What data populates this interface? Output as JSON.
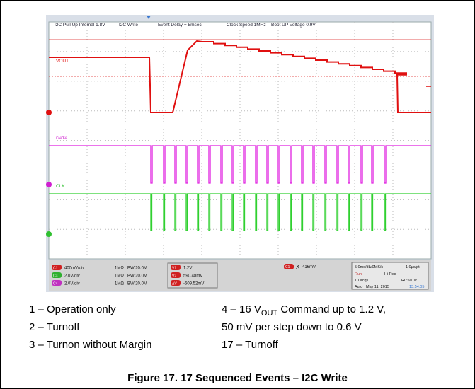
{
  "scope": {
    "top_labels": [
      "I2C Pull Up Internal 1.8V",
      "I2C Write",
      "Event Delay = 5msec",
      "Clock Speed 1MHz",
      "Boot UP Voltage 0.9V"
    ],
    "trace_labels": [
      "VOUT",
      "DATA",
      "CLK"
    ],
    "channels": [
      {
        "id": "C1",
        "scale": "400mV/div",
        "coupling": "1MΩ",
        "bw": "BW:20.0M"
      },
      {
        "id": "C3",
        "scale": "2.0V/div",
        "coupling": "1MΩ",
        "bw": "BW:20.0M"
      },
      {
        "id": "C4",
        "scale": "2.0V/div",
        "coupling": "1MΩ",
        "bw": "BW:20.0M"
      }
    ],
    "cursors": [
      {
        "id": "V1",
        "value": "1.2V"
      },
      {
        "id": "V2",
        "value": "590.48mV"
      },
      {
        "id": "ΔV",
        "value": "-609.52mV"
      }
    ],
    "trigger": {
      "channel": "C1",
      "symbol": "X",
      "level": "416mV"
    },
    "timebase": {
      "div": "5.0ms/div",
      "rate": "1.0MS/s",
      "pt": "1.0µs/pt",
      "state": "Run",
      "mode": "Hi Res",
      "acqs": "10 acqs",
      "rl": "RL:50.0k",
      "trig_mode": "Auto",
      "date": "May 11, 2015",
      "time": "13:54:05"
    }
  },
  "legend": {
    "left": [
      "1 – Operation only",
      "2 – Turnoff",
      "3 – Turnon without Margin"
    ],
    "right": {
      "line1_pre": "4 – 16 V",
      "line1_sub": "OUT",
      "line1_post": " Command up to 1.2 V,",
      "line2": "50 mV per step down to 0.6 V",
      "line3": "17 – Turnoff"
    }
  },
  "figure_title": "Figure 17. 17 Sequenced Events – I2C Write"
}
